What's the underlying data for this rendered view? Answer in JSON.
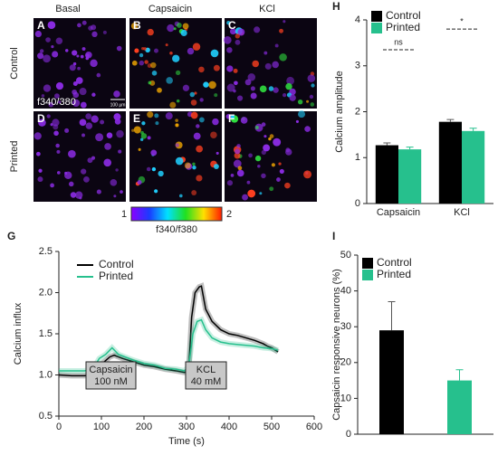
{
  "images": {
    "columns": [
      "Basal",
      "Capsaicin",
      "KCl"
    ],
    "rows": [
      "Control",
      "Printed"
    ],
    "panels": [
      "A",
      "B",
      "C",
      "D",
      "E",
      "F"
    ],
    "ratio_label": "f340/380",
    "scale_bar": "100 µm",
    "colorbar": {
      "min": "1",
      "max": "2",
      "label": "f340/f380"
    }
  },
  "chart_data": [
    {
      "type": "bar",
      "panel": "H",
      "ylabel": "Calcium amplitude",
      "categories": [
        "Capsaicin",
        "KCl"
      ],
      "series": [
        {
          "name": "Control",
          "color": "#000000",
          "values": [
            1.27,
            1.78
          ],
          "errors": [
            0.05,
            0.05
          ]
        },
        {
          "name": "Printed",
          "color": "#26c08d",
          "values": [
            1.18,
            1.58
          ],
          "errors": [
            0.05,
            0.06
          ]
        }
      ],
      "ylim": [
        0,
        4
      ],
      "yticks": [
        0,
        1,
        2,
        3,
        4
      ],
      "annotations": [
        "ns",
        "*"
      ],
      "legend": "top-left"
    },
    {
      "type": "line",
      "panel": "G",
      "ylabel": "Calcium influx",
      "xlabel": "Time (s)",
      "series": [
        {
          "name": "Control",
          "color": "#000000",
          "x": [
            0,
            30,
            60,
            75,
            85,
            100,
            120,
            130,
            150,
            175,
            200,
            225,
            250,
            275,
            295,
            305,
            312,
            320,
            330,
            335,
            345,
            360,
            380,
            400,
            420,
            440,
            460,
            480,
            490,
            500,
            515
          ],
          "values": [
            1.0,
            0.99,
            0.99,
            1.0,
            1.1,
            1.13,
            1.22,
            1.24,
            1.2,
            1.16,
            1.12,
            1.1,
            1.07,
            1.05,
            1.03,
            1.05,
            1.7,
            2.0,
            2.07,
            2.08,
            1.8,
            1.65,
            1.55,
            1.5,
            1.48,
            1.45,
            1.42,
            1.38,
            1.35,
            1.33,
            1.28
          ]
        },
        {
          "name": "Printed",
          "color": "#26c08d",
          "x": [
            0,
            60,
            80,
            95,
            110,
            125,
            140,
            175,
            200,
            225,
            250,
            275,
            295,
            305,
            315,
            325,
            335,
            345,
            360,
            380,
            400,
            420,
            440,
            460,
            480,
            500,
            515
          ],
          "values": [
            1.05,
            1.05,
            1.07,
            1.2,
            1.25,
            1.33,
            1.25,
            1.18,
            1.14,
            1.12,
            1.08,
            1.07,
            1.05,
            1.1,
            1.5,
            1.65,
            1.67,
            1.55,
            1.45,
            1.4,
            1.38,
            1.37,
            1.36,
            1.35,
            1.33,
            1.32,
            1.3
          ]
        }
      ],
      "xlim": [
        0,
        600
      ],
      "xticks": [
        0,
        100,
        200,
        300,
        400,
        500,
        600
      ],
      "ylim": [
        0.5,
        2.5
      ],
      "yticks": [
        {
          "value": 0.5,
          "label": "0.5"
        },
        {
          "value": 1,
          "label": "1.0"
        },
        {
          "value": 1.5,
          "label": "1.5"
        },
        {
          "value": 2,
          "label": "2.0"
        },
        {
          "value": 2.5,
          "label": "2.5"
        }
      ],
      "annotations": [
        "Capsaicin",
        "100 nM",
        "KCL",
        "40 mM"
      ],
      "legend": "top-left"
    },
    {
      "type": "bar",
      "panel": "I",
      "ylabel": "Capsaicin responsive neurons (%)",
      "categories": [
        null,
        null
      ],
      "series": [
        {
          "name": "Control",
          "color": "#000000",
          "values": [
            29,
            null
          ],
          "errors": [
            8,
            null
          ]
        },
        {
          "name": "Printed",
          "color": "#26c08d",
          "values": [
            null,
            15
          ],
          "errors": [
            null,
            3
          ]
        }
      ],
      "ylim": [
        0,
        50
      ],
      "yticks": [
        0,
        10,
        20,
        30,
        40,
        50
      ],
      "legend": "top-left"
    }
  ]
}
